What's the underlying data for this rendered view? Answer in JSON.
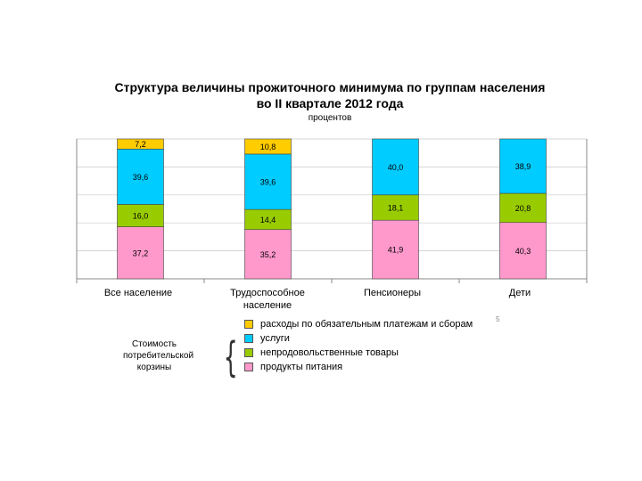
{
  "header": {
    "title_line1": "Структура величины прожиточного минимума по группам населения",
    "title_line2": "во II квартале 2012 года",
    "units": "процентов"
  },
  "chart_data": {
    "type": "bar",
    "stacked": true,
    "categories": [
      "Все население",
      "Трудоспособное население",
      "Пенсионеры",
      "Дети"
    ],
    "series": [
      {
        "name": "продукты питания",
        "values": [
          37.2,
          35.2,
          41.9,
          40.3
        ],
        "labels": [
          "37,2",
          "35,2",
          "41,9",
          "40,3"
        ],
        "color": "#ff99cc"
      },
      {
        "name": "непродовольственные товары",
        "values": [
          16.0,
          14.4,
          18.1,
          20.8
        ],
        "labels": [
          "16,0",
          "14,4",
          "18,1",
          "20,8"
        ],
        "color": "#99cc00"
      },
      {
        "name": "услуги",
        "values": [
          39.6,
          39.6,
          40.0,
          38.9
        ],
        "labels": [
          "39,6",
          "39,6",
          "40,0",
          "38,9"
        ],
        "color": "#00ccff"
      },
      {
        "name": "расходы по обязательным платежам и сборам",
        "values": [
          7.2,
          10.8,
          0,
          0
        ],
        "labels": [
          "7,2",
          "10,8",
          "",
          ""
        ],
        "color": "#ffcc00"
      }
    ],
    "ylim": [
      0,
      100
    ],
    "grid": true,
    "legend_order": [
      3,
      2,
      1,
      0
    ]
  },
  "note": "Стоимость потребительской корзины",
  "footnote_mark": "5"
}
